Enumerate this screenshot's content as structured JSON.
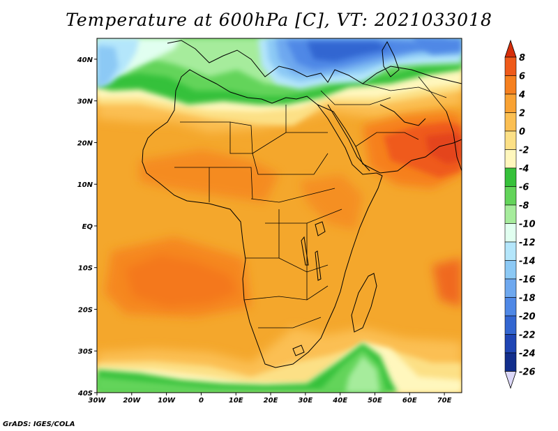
{
  "title": "Temperature at 600hPa [C], VT: 2021033018",
  "credit": "GrADS: IGES/COLA",
  "map": {
    "lon_range": [
      -30,
      75
    ],
    "lat_range": [
      -40,
      45
    ],
    "x_ticks": [
      {
        "lon": -30,
        "label": "30W"
      },
      {
        "lon": -20,
        "label": "20W"
      },
      {
        "lon": -10,
        "label": "10W"
      },
      {
        "lon": 0,
        "label": "0"
      },
      {
        "lon": 10,
        "label": "10E"
      },
      {
        "lon": 20,
        "label": "20E"
      },
      {
        "lon": 30,
        "label": "30E"
      },
      {
        "lon": 40,
        "label": "40E"
      },
      {
        "lon": 50,
        "label": "50E"
      },
      {
        "lon": 60,
        "label": "60E"
      },
      {
        "lon": 70,
        "label": "70E"
      }
    ],
    "y_ticks": [
      {
        "lat": 40,
        "label": "40N"
      },
      {
        "lat": 30,
        "label": "30N"
      },
      {
        "lat": 20,
        "label": "20N"
      },
      {
        "lat": 10,
        "label": "10N"
      },
      {
        "lat": 0,
        "label": "EQ"
      },
      {
        "lat": -10,
        "label": "10S"
      },
      {
        "lat": -20,
        "label": "20S"
      },
      {
        "lat": -30,
        "label": "30S"
      },
      {
        "lat": -40,
        "label": "40S"
      }
    ],
    "background_color": "#f4a72c"
  },
  "colorbar": {
    "levels": [
      "8",
      "6",
      "4",
      "2",
      "0",
      "-2",
      "-4",
      "-6",
      "-8",
      "-10",
      "-12",
      "-14",
      "-16",
      "-18",
      "-20",
      "-22",
      "-24",
      "-26"
    ],
    "colors": [
      "#d62e0a",
      "#ef5a1a",
      "#f6801f",
      "#f9a233",
      "#fbbf52",
      "#fce086",
      "#fff7bd",
      "#36c13a",
      "#63d45a",
      "#a6ec9c",
      "#e1fff0",
      "#b4e6fb",
      "#8cc9f5",
      "#6ea8ef",
      "#4f88e6",
      "#3366d1",
      "#1f45b4",
      "#122e8c",
      "#0a1660"
    ]
  }
}
